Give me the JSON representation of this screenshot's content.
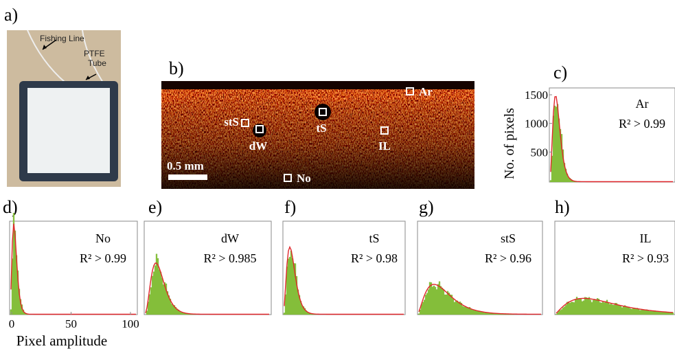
{
  "panels": {
    "a": {
      "label": "a)",
      "annotations": [
        "Fishing Line",
        "PTFE",
        "Tube"
      ]
    },
    "b": {
      "label": "b)",
      "scale_bar": "0.5 mm",
      "regions": [
        "Ar",
        "stS",
        "dW",
        "tS",
        "IL",
        "No"
      ]
    },
    "histograms": [
      {
        "label": "c)",
        "region": "Ar",
        "r2": "R² > 0.99"
      },
      {
        "label": "d)",
        "region": "No",
        "r2": "R² > 0.99"
      },
      {
        "label": "e)",
        "region": "dW",
        "r2": "R² > 0.985"
      },
      {
        "label": "f)",
        "region": "tS",
        "r2": "R² > 0.98"
      },
      {
        "label": "g)",
        "region": "stS",
        "r2": "R² > 0.96"
      },
      {
        "label": "h)",
        "region": "IL",
        "r2": "R² > 0.93"
      }
    ],
    "y_axis": {
      "label": "No. of pixels",
      "ticks": [
        500,
        1000,
        1500
      ]
    },
    "x_axis": {
      "label": "Pixel amplitude",
      "ticks": [
        0,
        50,
        100
      ]
    }
  }
}
